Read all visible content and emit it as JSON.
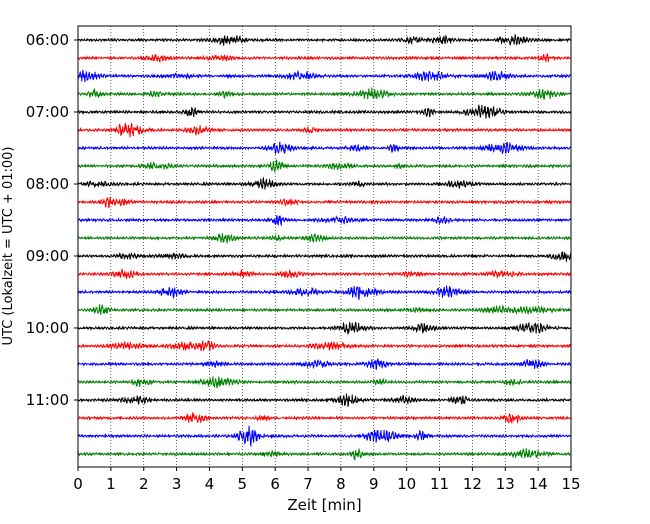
{
  "chart_data": {
    "type": "line",
    "title": "",
    "xlabel": "Zeit  [min]",
    "ylabel": "UTC (Lokalzeit = UTC + 01:00)",
    "xlim": [
      0,
      15
    ],
    "x_ticks": [
      "0",
      "1",
      "2",
      "3",
      "4",
      "5",
      "6",
      "7",
      "8",
      "9",
      "10",
      "11",
      "12",
      "13",
      "14",
      "15"
    ],
    "y_ticks": [
      "06:00",
      "07:00",
      "08:00",
      "09:00",
      "10:00",
      "11:00"
    ],
    "x_grid": "dotted vertical lines at each minute",
    "trace_interval_minutes": 15,
    "traces_start": "06:00",
    "trace_colors": [
      "#000000",
      "#ff0000",
      "#0000ff",
      "#008000"
    ],
    "series": [
      {
        "start": "06:00",
        "color": "#000000"
      },
      {
        "start": "06:15",
        "color": "#ff0000"
      },
      {
        "start": "06:30",
        "color": "#0000ff"
      },
      {
        "start": "06:45",
        "color": "#008000"
      },
      {
        "start": "07:00",
        "color": "#000000"
      },
      {
        "start": "07:15",
        "color": "#ff0000"
      },
      {
        "start": "07:30",
        "color": "#0000ff"
      },
      {
        "start": "07:45",
        "color": "#008000"
      },
      {
        "start": "08:00",
        "color": "#000000"
      },
      {
        "start": "08:15",
        "color": "#ff0000"
      },
      {
        "start": "08:30",
        "color": "#0000ff"
      },
      {
        "start": "08:45",
        "color": "#008000"
      },
      {
        "start": "09:00",
        "color": "#000000"
      },
      {
        "start": "09:15",
        "color": "#ff0000"
      },
      {
        "start": "09:30",
        "color": "#0000ff"
      },
      {
        "start": "09:45",
        "color": "#008000"
      },
      {
        "start": "10:00",
        "color": "#000000"
      },
      {
        "start": "10:15",
        "color": "#ff0000"
      },
      {
        "start": "10:30",
        "color": "#0000ff"
      },
      {
        "start": "10:45",
        "color": "#008000"
      },
      {
        "start": "11:00",
        "color": "#000000"
      },
      {
        "start": "11:15",
        "color": "#ff0000"
      },
      {
        "start": "11:30",
        "color": "#0000ff"
      },
      {
        "start": "11:45",
        "color": "#008000"
      }
    ]
  }
}
